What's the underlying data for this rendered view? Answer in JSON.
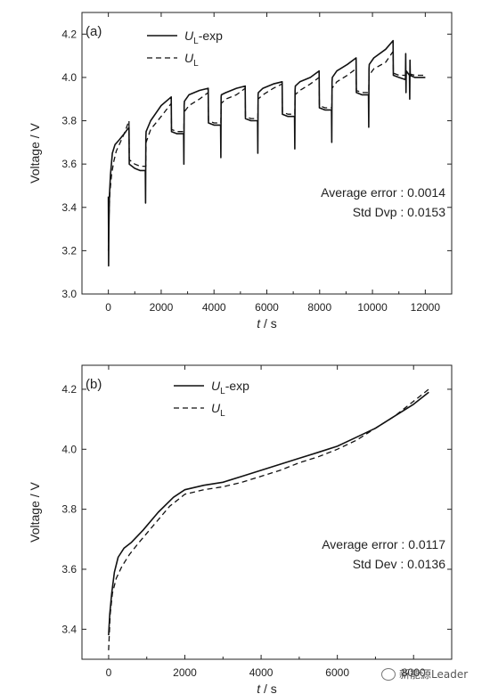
{
  "watermark": "新能源Leader",
  "chart_data": [
    {
      "type": "line",
      "panel_label": "(a)",
      "xlabel_italic": "t",
      "xlabel_unit": " / s",
      "ylabel": "Voltage / V",
      "xlim": [
        -1000,
        13000
      ],
      "ylim": [
        3.0,
        4.3
      ],
      "xticks": [
        0,
        2000,
        4000,
        6000,
        8000,
        10000,
        12000
      ],
      "yticks": [
        3.0,
        3.2,
        3.4,
        3.6,
        3.8,
        4.0,
        4.2
      ],
      "ytick_decimals": 1,
      "legend_position": "top-left",
      "annotations": [
        "Average error : 0.0014",
        "Std Dvp : 0.0153"
      ],
      "series": [
        {
          "name": "U",
          "name_sub": "L",
          "name_suffix": "-exp",
          "dash": "solid",
          "x": [
            0,
            5,
            10,
            20,
            40,
            80,
            150,
            250,
            400,
            600,
            780,
            790,
            1000,
            1200,
            1400,
            1410,
            1420,
            1430,
            1600,
            2000,
            2380,
            2390,
            2600,
            2850,
            2860,
            2870,
            2880,
            3050,
            3450,
            3780,
            3790,
            4000,
            4250,
            4260,
            4270,
            4280,
            4450,
            4850,
            5180,
            5190,
            5400,
            5650,
            5660,
            5670,
            5680,
            5850,
            6250,
            6580,
            6590,
            6800,
            7050,
            7060,
            7070,
            7080,
            7250,
            7650,
            7980,
            7990,
            8200,
            8450,
            8460,
            8470,
            8480,
            8650,
            9050,
            9380,
            9390,
            9600,
            9850,
            9860,
            9870,
            9880,
            10050,
            10500,
            10780,
            10790,
            11000,
            11250,
            11260,
            11270,
            11280,
            11400,
            11410,
            11420,
            11430,
            11600,
            11800,
            12000
          ],
          "y": [
            3.45,
            3.3,
            3.13,
            3.3,
            3.45,
            3.55,
            3.65,
            3.69,
            3.71,
            3.74,
            3.77,
            3.6,
            3.58,
            3.57,
            3.57,
            3.42,
            3.72,
            3.75,
            3.8,
            3.87,
            3.91,
            3.75,
            3.74,
            3.74,
            3.6,
            3.87,
            3.89,
            3.92,
            3.94,
            3.95,
            3.79,
            3.78,
            3.78,
            3.63,
            3.91,
            3.92,
            3.93,
            3.95,
            3.96,
            3.81,
            3.8,
            3.8,
            3.65,
            3.92,
            3.93,
            3.95,
            3.97,
            3.98,
            3.83,
            3.82,
            3.82,
            3.67,
            3.94,
            3.96,
            3.98,
            4.0,
            4.03,
            3.86,
            3.85,
            3.85,
            3.7,
            3.98,
            4.0,
            4.03,
            4.06,
            4.09,
            3.93,
            3.92,
            3.92,
            3.77,
            4.04,
            4.06,
            4.09,
            4.13,
            4.17,
            4.01,
            4.0,
            3.99,
            4.11,
            3.93,
            4.03,
            4.01,
            3.9,
            4.08,
            4.01,
            4.0,
            4.0,
            4.0
          ]
        },
        {
          "name": "U",
          "name_sub": "L",
          "name_suffix": "",
          "dash": "dashed",
          "x": [
            0,
            20,
            60,
            120,
            200,
            300,
            450,
            600,
            780,
            790,
            1000,
            1200,
            1420,
            1430,
            1600,
            2000,
            2380,
            2390,
            2600,
            2860,
            2870,
            3050,
            3450,
            3780,
            3790,
            4000,
            4260,
            4270,
            4450,
            4850,
            5180,
            5190,
            5400,
            5660,
            5670,
            5850,
            6250,
            6580,
            6590,
            6800,
            7060,
            7070,
            7250,
            7650,
            7980,
            7990,
            8200,
            8460,
            8470,
            8650,
            9050,
            9380,
            9390,
            9600,
            9860,
            9870,
            10050,
            10500,
            10780,
            10790,
            11000,
            11270,
            11280,
            11600,
            12000
          ],
          "y": [
            3.2,
            3.35,
            3.47,
            3.55,
            3.61,
            3.66,
            3.7,
            3.74,
            3.8,
            3.62,
            3.6,
            3.59,
            3.59,
            3.7,
            3.76,
            3.82,
            3.88,
            3.76,
            3.75,
            3.75,
            3.84,
            3.87,
            3.9,
            3.93,
            3.8,
            3.79,
            3.79,
            3.88,
            3.9,
            3.92,
            3.95,
            3.82,
            3.81,
            3.81,
            3.9,
            3.92,
            3.95,
            3.97,
            3.84,
            3.83,
            3.83,
            3.92,
            3.94,
            3.97,
            4.0,
            3.87,
            3.86,
            3.86,
            3.95,
            3.98,
            4.01,
            4.04,
            3.94,
            3.93,
            3.93,
            4.01,
            4.04,
            4.07,
            4.12,
            4.02,
            4.01,
            4.01,
            4.02,
            4.01,
            4.01
          ]
        }
      ]
    },
    {
      "type": "line",
      "panel_label": "(b)",
      "xlabel_italic": "t",
      "xlabel_unit": " / s",
      "ylabel": "Voltage / V",
      "xlim": [
        -700,
        9000
      ],
      "ylim": [
        3.3,
        4.28
      ],
      "xticks": [
        0,
        2000,
        4000,
        6000,
        8000
      ],
      "yticks": [
        3.4,
        3.6,
        3.8,
        4.0,
        4.2
      ],
      "ytick_decimals": 1,
      "legend_position": "top-center",
      "annotations": [
        "Average error : 0.0117",
        "Std Dev : 0.0136"
      ],
      "series": [
        {
          "name": "U",
          "name_sub": "L",
          "name_suffix": "-exp",
          "dash": "solid",
          "x": [
            0,
            30,
            80,
            150,
            250,
            400,
            600,
            900,
            1300,
            1700,
            2000,
            2500,
            3000,
            3500,
            4000,
            4500,
            5000,
            5500,
            6000,
            6500,
            7000,
            7500,
            8000,
            8400
          ],
          "y": [
            3.38,
            3.45,
            3.52,
            3.59,
            3.64,
            3.67,
            3.69,
            3.73,
            3.79,
            3.84,
            3.865,
            3.88,
            3.89,
            3.91,
            3.93,
            3.95,
            3.97,
            3.99,
            4.01,
            4.04,
            4.07,
            4.11,
            4.15,
            4.19
          ]
        },
        {
          "name": "U",
          "name_sub": "L",
          "name_suffix": "",
          "dash": "dashed",
          "x": [
            0,
            40,
            100,
            200,
            350,
            550,
            800,
            1200,
            1600,
            2000,
            2500,
            3000,
            3500,
            4000,
            4500,
            5000,
            5500,
            6000,
            6500,
            7000,
            7500,
            8000,
            8400
          ],
          "y": [
            3.33,
            3.45,
            3.52,
            3.57,
            3.61,
            3.65,
            3.69,
            3.75,
            3.81,
            3.85,
            3.865,
            3.875,
            3.89,
            3.91,
            3.93,
            3.955,
            3.975,
            4.0,
            4.03,
            4.07,
            4.11,
            4.16,
            4.2
          ]
        }
      ]
    }
  ]
}
